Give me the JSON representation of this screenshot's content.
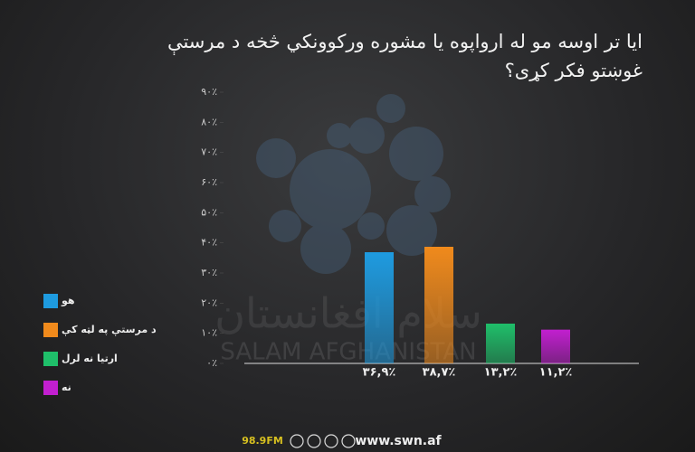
{
  "chart_data": {
    "type": "bar",
    "title": "ایا تر اوسه مو له ارواپوه یا مشوره ورکوونکي څخه د مرستې غوښتو فکر کړی؟",
    "categories": [
      "هو",
      "د مرستې په لټه کې",
      "ارتیا نه لرل",
      "نه"
    ],
    "values": [
      36.9,
      38.7,
      13.2,
      11.2
    ],
    "value_labels": [
      "۳۶,۹٪",
      "۳۸,۷٪",
      "۱۳,۲٪",
      "۱۱,۲٪"
    ],
    "colors": [
      "#1e9be0",
      "#f08a1c",
      "#1fbf6a",
      "#c21fd0"
    ],
    "ylim": [
      0,
      90
    ],
    "yticks": [
      {
        "value": 0,
        "label": "۰٪"
      },
      {
        "value": 10,
        "label": "۱۰٪"
      },
      {
        "value": 20,
        "label": "۲۰٪"
      },
      {
        "value": 30,
        "label": "۳۰٪"
      },
      {
        "value": 40,
        "label": "۴۰٪"
      },
      {
        "value": 50,
        "label": "۵۰٪"
      },
      {
        "value": 60,
        "label": "۶۰٪"
      },
      {
        "value": 70,
        "label": "۷۰٪"
      },
      {
        "value": 80,
        "label": "۸۰٪"
      },
      {
        "value": 90,
        "label": "۹۰٪"
      }
    ],
    "watermark": "SALAM AFGHANISTAN",
    "watermark_native": "سلام افغانستان",
    "footer": {
      "frequency": "98.9FM",
      "website": "www.swn.af"
    }
  }
}
